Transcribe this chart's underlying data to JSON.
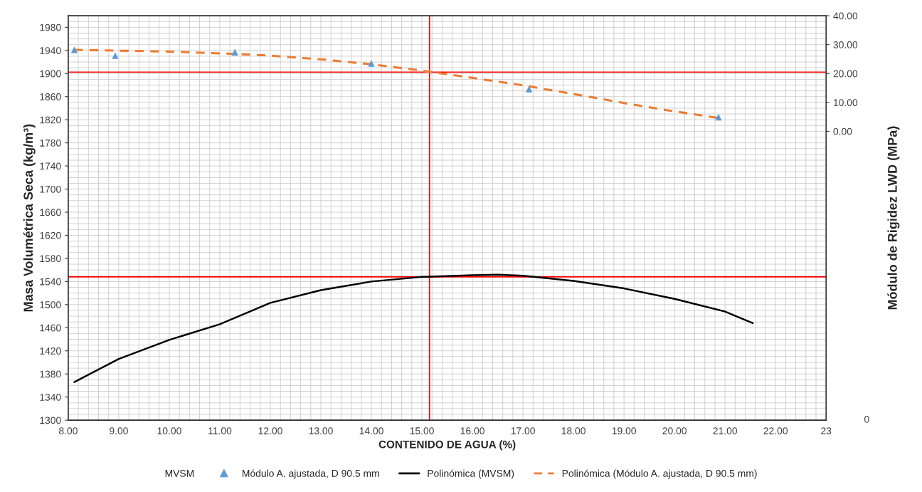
{
  "chart_data": {
    "type": "scatter",
    "xlabel": "CONTENIDO DE AGUA (%)",
    "ylabel": "Masa Volumétrica Seca (kg/m³)",
    "y2label": "Módulo de Rigidez LWD (MPa)",
    "xlim": [
      8,
      23
    ],
    "xticks": [
      {
        "value": 8,
        "label": "8.00"
      },
      {
        "value": 9,
        "label": "9.00"
      },
      {
        "value": 10,
        "label": "10.00"
      },
      {
        "value": 11,
        "label": "11.00"
      },
      {
        "value": 12,
        "label": "12.00"
      },
      {
        "value": 13,
        "label": "13.00"
      },
      {
        "value": 14,
        "label": "14.00"
      },
      {
        "value": 15,
        "label": "15.00"
      },
      {
        "value": 16,
        "label": "16.00"
      },
      {
        "value": 17,
        "label": "17.00"
      },
      {
        "value": 18,
        "label": "18.00"
      },
      {
        "value": 19,
        "label": "19.00"
      },
      {
        "value": 20,
        "label": "20.00"
      },
      {
        "value": 21,
        "label": "21.00"
      },
      {
        "value": 22,
        "label": "22.00"
      },
      23
    ],
    "ylim": [
      1300,
      2000
    ],
    "yticks": [
      1300,
      1340,
      1380,
      1420,
      1460,
      1500,
      1540,
      1580,
      1620,
      1660,
      1700,
      1740,
      1780,
      1820,
      1860,
      1900,
      1940,
      1980
    ],
    "y2lim": [
      -100,
      40
    ],
    "y2ticks": [
      {
        "value": 0,
        "label": "0.00"
      },
      {
        "value": 10,
        "label": "10.00"
      },
      {
        "value": 20,
        "label": "20.00"
      },
      {
        "value": 30,
        "label": "30.00"
      },
      {
        "value": 40,
        "label": "40.00"
      }
    ],
    "grid": true,
    "legend": "bottom",
    "series": [
      {
        "name": "MVSM",
        "marker": "none"
      },
      {
        "name": "Módulo A. ajustada, D 90.5 mm",
        "axis": "y2",
        "marker": "triangle",
        "color": "#5b9bd5",
        "x": [
          8.12,
          8.93,
          11.3,
          14.0,
          17.12,
          20.87
        ],
        "values": [
          28.2,
          26.2,
          27.4,
          23.5,
          14.6,
          4.9
        ]
      },
      {
        "name": "Polinómica (MVSM)",
        "type": "line",
        "marker": "none",
        "line_style": "solid",
        "color": "#000000",
        "x": [
          8.12,
          9,
          10,
          11,
          12,
          13,
          14,
          15,
          16,
          16.5,
          17,
          18,
          19,
          20,
          21,
          21.55
        ],
        "values": [
          1366,
          1406,
          1439,
          1466,
          1503,
          1525,
          1540,
          1548,
          1551,
          1552,
          1550,
          1541,
          1528,
          1510,
          1488,
          1468
        ]
      },
      {
        "name": "Polinómica (Módulo A. ajustada, D 90.5 mm)",
        "type": "line",
        "axis": "y2",
        "marker": "none",
        "line_style": "dashed",
        "color": "#ed7d31",
        "x": [
          8.12,
          10,
          11.3,
          12,
          13,
          14,
          15,
          16,
          17,
          18,
          19,
          20,
          20.87
        ],
        "values": [
          28.2,
          27.6,
          26.8,
          26.2,
          24.9,
          23.2,
          21.0,
          18.5,
          15.9,
          12.9,
          9.8,
          6.9,
          4.6
        ]
      }
    ],
    "ref_lines": [
      {
        "axis": "x",
        "value": 15.15,
        "color": "#ff0000"
      },
      {
        "axis": "y",
        "value": 1548,
        "color": "#ff0000"
      },
      {
        "axis": "y2",
        "value": 20.5,
        "color": "#ff0000"
      }
    ],
    "annotations": [
      "0"
    ]
  }
}
